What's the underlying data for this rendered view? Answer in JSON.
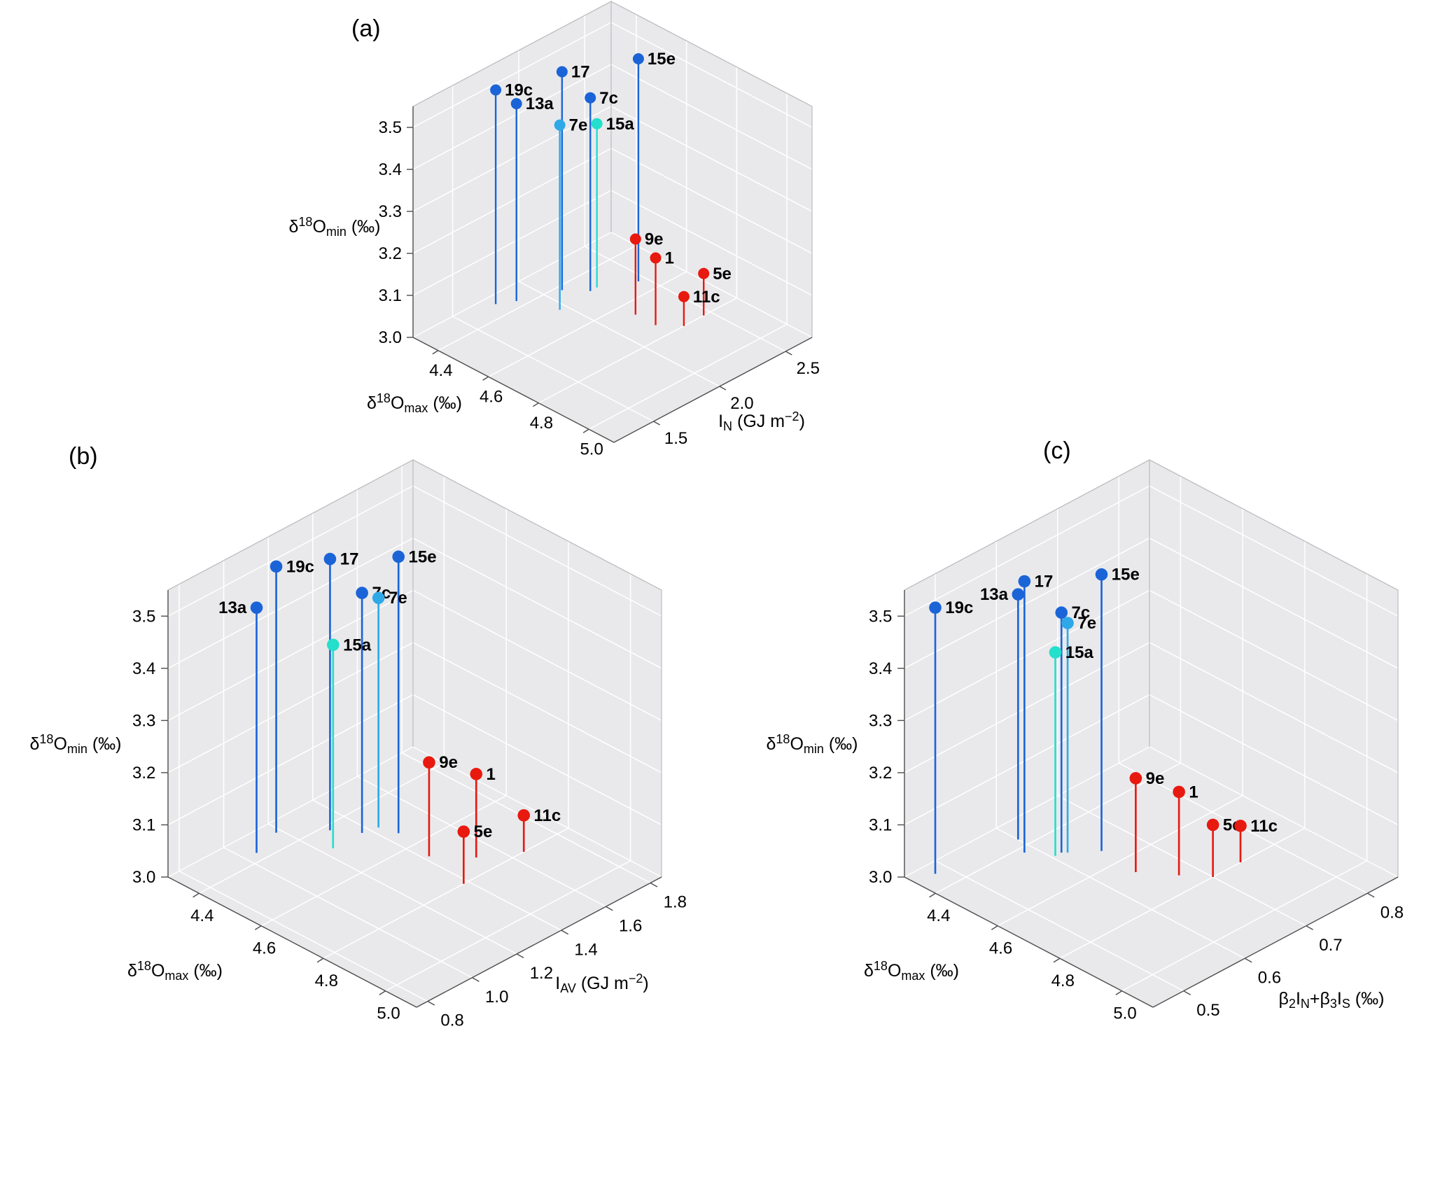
{
  "figure": {
    "background": "#ffffff"
  },
  "colors": {
    "blue": "#1b64d8",
    "lightblue": "#2fa8e8",
    "turquoise": "#23dfcb",
    "red": "#e8190f"
  },
  "style": {
    "pane": "#e9e9ec",
    "pane_edge": "#bcbcc0",
    "grid": "#ffffff",
    "axis": "#4d4d4d",
    "text": "#000000"
  },
  "chart_data": [
    {
      "type": "scatter3d-stem",
      "panel_label": "(a)",
      "axes": {
        "x": {
          "label": "δ18Omax (‰)",
          "label_parts": [
            [
              "δ",
              "n"
            ],
            [
              "18",
              "sup"
            ],
            [
              "O",
              "n"
            ],
            [
              "max",
              "sub"
            ],
            [
              " (‰)",
              "n"
            ]
          ],
          "ticks": [
            4.4,
            4.6,
            4.8,
            5.0
          ],
          "range": [
            4.3,
            5.1
          ]
        },
        "y": {
          "label": "IN (GJ m−2)",
          "label_parts": [
            [
              "I",
              "n"
            ],
            [
              "N",
              "sub"
            ],
            [
              " (GJ m",
              "n"
            ],
            [
              "−2",
              "sup"
            ],
            [
              ")",
              "n"
            ]
          ],
          "ticks": [
            1.5,
            2.0,
            2.5
          ],
          "range": [
            1.2,
            2.7
          ]
        },
        "z": {
          "label": "δ18Omin (‰)",
          "label_parts": [
            [
              "δ",
              "n"
            ],
            [
              "18",
              "sup"
            ],
            [
              "O",
              "n"
            ],
            [
              "min",
              "sub"
            ],
            [
              " (‰)",
              "n"
            ]
          ],
          "ticks": [
            3.0,
            3.1,
            3.2,
            3.3,
            3.4,
            3.5
          ],
          "range": [
            3.0,
            3.55
          ]
        }
      },
      "points": [
        {
          "id": "19c",
          "x": 4.34,
          "y": 1.75,
          "z": 3.51,
          "color": "blue",
          "label_side": "right"
        },
        {
          "id": "13a",
          "x": 4.37,
          "y": 1.85,
          "z": 3.47,
          "color": "blue",
          "label_side": "right"
        },
        {
          "id": "17",
          "x": 4.42,
          "y": 2.1,
          "z": 3.52,
          "color": "blue",
          "label_side": "right"
        },
        {
          "id": "7e",
          "x": 4.49,
          "y": 1.95,
          "z": 3.44,
          "color": "lightblue",
          "label_side": "right"
        },
        {
          "id": "7c",
          "x": 4.48,
          "y": 2.2,
          "z": 3.46,
          "color": "blue",
          "label_side": "right"
        },
        {
          "id": "15a",
          "x": 4.48,
          "y": 2.25,
          "z": 3.39,
          "color": "turquoise",
          "label_side": "right"
        },
        {
          "id": "15e",
          "x": 4.54,
          "y": 2.45,
          "z": 3.53,
          "color": "blue",
          "label_side": "right"
        },
        {
          "id": "9e",
          "x": 4.66,
          "y": 2.2,
          "z": 3.18,
          "color": "red",
          "label_side": "right"
        },
        {
          "id": "1",
          "x": 4.74,
          "y": 2.2,
          "z": 3.16,
          "color": "red",
          "label_side": "right"
        },
        {
          "id": "5e",
          "x": 4.8,
          "y": 2.45,
          "z": 3.1,
          "color": "red",
          "label_side": "right"
        },
        {
          "id": "11c",
          "x": 4.8,
          "y": 2.3,
          "z": 3.07,
          "color": "red",
          "label_side": "right"
        }
      ]
    },
    {
      "type": "scatter3d-stem",
      "panel_label": "(b)",
      "axes": {
        "x": {
          "label": "δ18Omax (‰)",
          "label_parts": [
            [
              "δ",
              "n"
            ],
            [
              "18",
              "sup"
            ],
            [
              "O",
              "n"
            ],
            [
              "max",
              "sub"
            ],
            [
              " (‰)",
              "n"
            ]
          ],
          "ticks": [
            4.4,
            4.6,
            4.8,
            5.0
          ],
          "range": [
            4.3,
            5.1
          ]
        },
        "y": {
          "label": "IAV (GJ m−2)",
          "label_parts": [
            [
              "I",
              "n"
            ],
            [
              "AV",
              "sub"
            ],
            [
              " (GJ m",
              "n"
            ],
            [
              "−2",
              "sup"
            ],
            [
              ")",
              "n"
            ]
          ],
          "ticks": [
            0.8,
            1.0,
            1.2,
            1.4,
            1.6,
            1.8
          ],
          "range": [
            0.75,
            1.85
          ]
        },
        "z": {
          "label": "δ18Omin (‰)",
          "label_parts": [
            [
              "δ",
              "n"
            ],
            [
              "18",
              "sup"
            ],
            [
              "O",
              "n"
            ],
            [
              "min",
              "sub"
            ],
            [
              " (‰)",
              "n"
            ]
          ],
          "ticks": [
            3.0,
            3.1,
            3.2,
            3.3,
            3.4,
            3.5
          ],
          "range": [
            3.0,
            3.55
          ]
        }
      },
      "points": [
        {
          "id": "13a",
          "x": 4.37,
          "y": 1.05,
          "z": 3.47,
          "color": "blue",
          "label_side": "left"
        },
        {
          "id": "19c",
          "x": 4.34,
          "y": 1.18,
          "z": 3.51,
          "color": "blue",
          "label_side": "right"
        },
        {
          "id": "17",
          "x": 4.42,
          "y": 1.31,
          "z": 3.52,
          "color": "blue",
          "label_side": "right"
        },
        {
          "id": "7c",
          "x": 4.48,
          "y": 1.37,
          "z": 3.46,
          "color": "blue",
          "label_side": "right"
        },
        {
          "id": "7e",
          "x": 4.49,
          "y": 1.43,
          "z": 3.44,
          "color": "lightblue",
          "label_side": "right"
        },
        {
          "id": "15a",
          "x": 4.48,
          "y": 1.24,
          "z": 3.39,
          "color": "turquoise",
          "label_side": "right"
        },
        {
          "id": "15e",
          "x": 4.54,
          "y": 1.45,
          "z": 3.53,
          "color": "blue",
          "label_side": "right"
        },
        {
          "id": "9e",
          "x": 4.66,
          "y": 1.42,
          "z": 3.18,
          "color": "red",
          "label_side": "right"
        },
        {
          "id": "1",
          "x": 4.74,
          "y": 1.52,
          "z": 3.16,
          "color": "red",
          "label_side": "right"
        },
        {
          "id": "5e",
          "x": 4.8,
          "y": 1.38,
          "z": 3.1,
          "color": "red",
          "label_side": "right"
        },
        {
          "id": "11c",
          "x": 4.8,
          "y": 1.65,
          "z": 3.07,
          "color": "red",
          "label_side": "right"
        }
      ]
    },
    {
      "type": "scatter3d-stem",
      "panel_label": "(c)",
      "axes": {
        "x": {
          "label": "δ18Omax (‰)",
          "label_parts": [
            [
              "δ",
              "n"
            ],
            [
              "18",
              "sup"
            ],
            [
              "O",
              "n"
            ],
            [
              "max",
              "sub"
            ],
            [
              " (‰)",
              "n"
            ]
          ],
          "ticks": [
            4.4,
            4.6,
            4.8,
            5.0
          ],
          "range": [
            4.3,
            5.1
          ]
        },
        "y": {
          "label": "β2IN+β3IS (‰)",
          "label_parts": [
            [
              "β",
              "n"
            ],
            [
              "2",
              "sub"
            ],
            [
              "I",
              "n"
            ],
            [
              "N",
              "sub"
            ],
            [
              "+β",
              "n"
            ],
            [
              "3",
              "sub"
            ],
            [
              "I",
              "n"
            ],
            [
              "S",
              "sub"
            ],
            [
              " (‰)",
              "n"
            ]
          ],
          "ticks": [
            0.5,
            0.6,
            0.7,
            0.8
          ],
          "range": [
            0.45,
            0.85
          ]
        },
        "z": {
          "label": "δ18Omin (‰)",
          "label_parts": [
            [
              "δ",
              "n"
            ],
            [
              "18",
              "sup"
            ],
            [
              "O",
              "n"
            ],
            [
              "min",
              "sub"
            ],
            [
              " (‰)",
              "n"
            ]
          ],
          "ticks": [
            3.0,
            3.1,
            3.2,
            3.3,
            3.4,
            3.5
          ],
          "range": [
            3.0,
            3.55
          ]
        }
      },
      "points": [
        {
          "id": "19c",
          "x": 4.34,
          "y": 0.48,
          "z": 3.51,
          "color": "blue",
          "label_side": "right"
        },
        {
          "id": "17",
          "x": 4.42,
          "y": 0.585,
          "z": 3.52,
          "color": "blue",
          "label_side": "right"
        },
        {
          "id": "13a",
          "x": 4.37,
          "y": 0.6,
          "z": 3.47,
          "color": "blue",
          "label_side": "left"
        },
        {
          "id": "7c",
          "x": 4.48,
          "y": 0.615,
          "z": 3.46,
          "color": "blue",
          "label_side": "right"
        },
        {
          "id": "7e",
          "x": 4.49,
          "y": 0.62,
          "z": 3.44,
          "color": "lightblue",
          "label_side": "right"
        },
        {
          "id": "15a",
          "x": 4.48,
          "y": 0.605,
          "z": 3.39,
          "color": "turquoise",
          "label_side": "right"
        },
        {
          "id": "15e",
          "x": 4.54,
          "y": 0.65,
          "z": 3.53,
          "color": "blue",
          "label_side": "right"
        },
        {
          "id": "9e",
          "x": 4.66,
          "y": 0.645,
          "z": 3.18,
          "color": "red",
          "label_side": "right"
        },
        {
          "id": "1",
          "x": 4.74,
          "y": 0.675,
          "z": 3.16,
          "color": "red",
          "label_side": "right"
        },
        {
          "id": "5e",
          "x": 4.8,
          "y": 0.7,
          "z": 3.1,
          "color": "red",
          "label_side": "right"
        },
        {
          "id": "11c",
          "x": 4.8,
          "y": 0.745,
          "z": 3.07,
          "color": "red",
          "label_side": "right"
        }
      ]
    }
  ]
}
